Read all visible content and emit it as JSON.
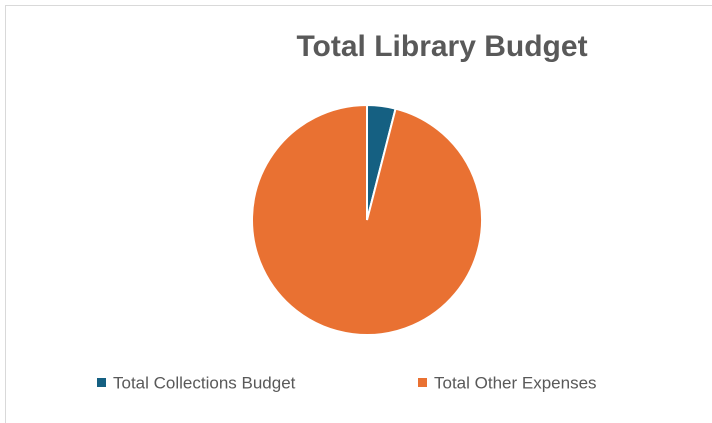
{
  "chart_data": {
    "type": "pie",
    "title": "Total Library Budget",
    "categories": [
      "Total Collections Budget",
      "Total Other Expenses"
    ],
    "values": [
      4,
      96
    ],
    "colors": [
      "#156082",
      "#e97132"
    ],
    "legend": "bottom"
  }
}
